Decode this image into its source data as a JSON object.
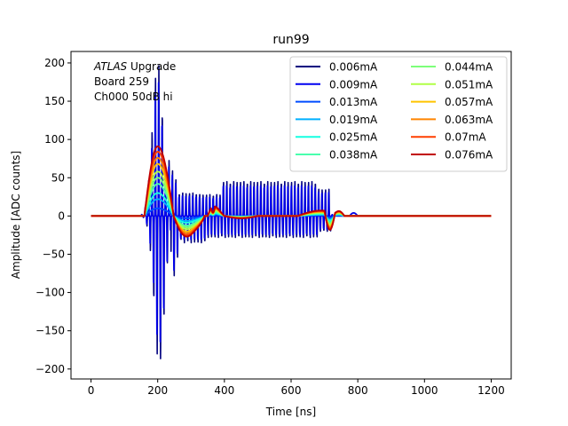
{
  "chart_data": {
    "type": "line",
    "title": "run99",
    "xlabel": "Time [ns]",
    "ylabel": "Amplitude [ADC counts]",
    "xlim": [
      -60,
      1260
    ],
    "ylim": [
      -213,
      215
    ],
    "xticks": [
      0,
      200,
      400,
      600,
      800,
      1000,
      1200
    ],
    "yticks": [
      -200,
      -150,
      -100,
      -50,
      0,
      50,
      100,
      150,
      200
    ],
    "grid": false,
    "legend_position": "top-right",
    "legend_columns": 2,
    "annotation": {
      "italic": "ATLAS",
      "rest": " Upgrade",
      "line2": " Board 259",
      "line3": " Ch000 50dB hi"
    },
    "series": [
      {
        "name": "0.006mA",
        "color": "#00007f",
        "kind": "oscillating",
        "smooth_amp": 0
      },
      {
        "name": "0.009mA",
        "color": "#0000f0",
        "kind": "oscillating",
        "smooth_amp": 0
      },
      {
        "name": "0.013mA",
        "color": "#004cff",
        "kind": "smooth",
        "smooth_amp": 10
      },
      {
        "name": "0.019mA",
        "color": "#00b0ff",
        "kind": "smooth",
        "smooth_amp": 22
      },
      {
        "name": "0.025mA",
        "color": "#15ffe1",
        "kind": "smooth",
        "smooth_amp": 30
      },
      {
        "name": "0.038mA",
        "color": "#49ffad",
        "kind": "smooth",
        "smooth_amp": 42
      },
      {
        "name": "0.044mA",
        "color": "#7dff7a",
        "kind": "smooth",
        "smooth_amp": 50
      },
      {
        "name": "0.051mA",
        "color": "#b0ff46",
        "kind": "smooth",
        "smooth_amp": 58
      },
      {
        "name": "0.057mA",
        "color": "#ffc400",
        "kind": "smooth",
        "smooth_amp": 68
      },
      {
        "name": "0.063mA",
        "color": "#ff8400",
        "kind": "smooth",
        "smooth_amp": 76
      },
      {
        "name": "0.07mA",
        "color": "#ff3f00",
        "kind": "smooth",
        "smooth_amp": 84
      },
      {
        "name": "0.076mA",
        "color": "#c10000",
        "kind": "smooth",
        "smooth_amp": 91
      }
    ]
  }
}
